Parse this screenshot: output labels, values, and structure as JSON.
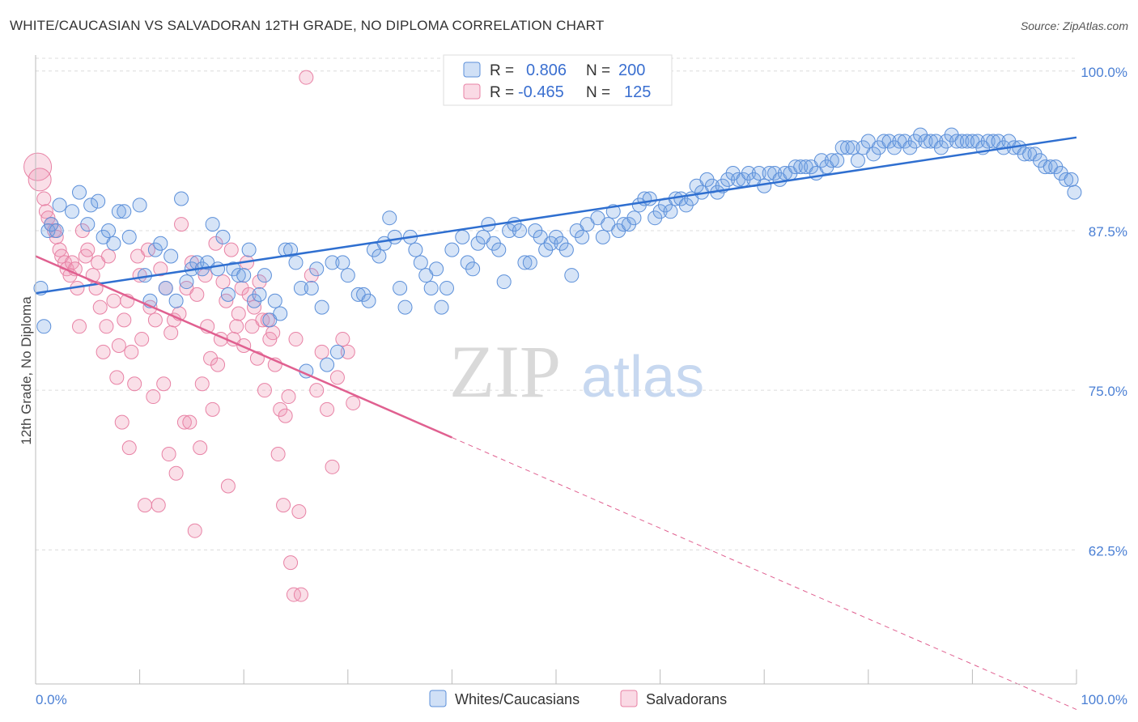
{
  "title": "WHITE/CAUCASIAN VS SALVADORAN 12TH GRADE, NO DIPLOMA CORRELATION CHART",
  "source": "Source: ZipAtlas.com",
  "colors": {
    "blue": "#5b8fd9",
    "blue_fill": "rgba(120,165,230,0.30)",
    "blue_line": "#2f6fd0",
    "pink": "#e882a5",
    "pink_fill": "rgba(240,150,180,0.30)",
    "pink_line": "#e06090"
  },
  "legend": {
    "rows": [
      {
        "r_label": "R =",
        "r_value": "0.806",
        "n_label": "N =",
        "n_value": "200"
      },
      {
        "r_label": "R =",
        "r_value": "-0.465",
        "n_label": "N =",
        "n_value": "125"
      }
    ]
  },
  "bottom_legend": [
    "Whites/Caucasians",
    "Salvadorans"
  ],
  "watermark": {
    "zip": "ZIP",
    "atlas": "atlas"
  },
  "chart_data": {
    "type": "scatter",
    "title": "WHITE/CAUCASIAN VS SALVADORAN 12TH GRADE, NO DIPLOMA CORRELATION CHART",
    "xlabel": "",
    "ylabel": "12th Grade, No Diploma",
    "xlim": [
      0,
      100
    ],
    "ylim": [
      52,
      101
    ],
    "x_tick_labels": [
      "0.0%",
      "100.0%"
    ],
    "y_ticks": [
      62.5,
      75.0,
      87.5,
      100.0
    ],
    "y_tick_labels": [
      "62.5%",
      "75.0%",
      "87.5%",
      "100.0%"
    ],
    "grid": true,
    "legend_position": "top-center",
    "series": [
      {
        "name": "Whites/Caucasians",
        "trend": {
          "x": [
            0,
            100
          ],
          "y": [
            82.6,
            94.8
          ]
        },
        "points": [
          [
            0.5,
            83
          ],
          [
            0.8,
            80
          ],
          [
            1.2,
            87.5
          ],
          [
            1.5,
            88
          ],
          [
            2,
            87.5
          ],
          [
            2.3,
            89.5
          ],
          [
            3.5,
            89
          ],
          [
            4.2,
            90.5
          ],
          [
            5,
            88
          ],
          [
            5.3,
            89.5
          ],
          [
            6,
            89.8
          ],
          [
            6.5,
            87
          ],
          [
            7,
            87.5
          ],
          [
            7.5,
            86.5
          ],
          [
            8,
            89
          ],
          [
            8.5,
            89
          ],
          [
            9,
            87
          ],
          [
            10,
            89.5
          ],
          [
            10.5,
            84
          ],
          [
            11,
            82
          ],
          [
            11.5,
            86
          ],
          [
            12,
            86.5
          ],
          [
            12.5,
            83
          ],
          [
            13,
            85.5
          ],
          [
            13.5,
            82
          ],
          [
            14,
            90
          ],
          [
            14.5,
            83.5
          ],
          [
            15,
            84.5
          ],
          [
            15.5,
            85
          ],
          [
            16,
            84.5
          ],
          [
            16.5,
            85
          ],
          [
            17,
            88
          ],
          [
            17.5,
            84.5
          ],
          [
            18,
            87
          ],
          [
            18.5,
            82.5
          ],
          [
            19,
            84.5
          ],
          [
            19.5,
            84
          ],
          [
            20,
            84
          ],
          [
            20.5,
            86
          ],
          [
            21,
            82
          ],
          [
            21.5,
            82.5
          ],
          [
            22,
            84
          ],
          [
            22.5,
            80.5
          ],
          [
            23,
            82
          ],
          [
            23.5,
            81
          ],
          [
            24,
            86
          ],
          [
            24.5,
            86
          ],
          [
            25,
            85
          ],
          [
            25.5,
            83
          ],
          [
            26,
            76.5
          ],
          [
            26.5,
            83
          ],
          [
            27,
            84.5
          ],
          [
            27.5,
            81.5
          ],
          [
            28,
            77
          ],
          [
            28.5,
            85
          ],
          [
            29,
            78
          ],
          [
            29.5,
            85
          ],
          [
            30,
            84
          ],
          [
            31,
            82.5
          ],
          [
            31.5,
            82.5
          ],
          [
            32,
            82
          ],
          [
            32.5,
            86
          ],
          [
            33,
            85.5
          ],
          [
            33.5,
            86.5
          ],
          [
            34,
            88.5
          ],
          [
            34.5,
            87
          ],
          [
            35,
            83
          ],
          [
            35.5,
            81.5
          ],
          [
            36,
            87
          ],
          [
            36.5,
            86
          ],
          [
            37,
            85
          ],
          [
            37.5,
            84
          ],
          [
            38,
            83
          ],
          [
            38.5,
            84.5
          ],
          [
            39,
            81.5
          ],
          [
            39.5,
            83
          ],
          [
            40,
            86
          ],
          [
            41,
            87
          ],
          [
            41.5,
            85
          ],
          [
            42,
            84.5
          ],
          [
            42.5,
            86.5
          ],
          [
            43,
            87
          ],
          [
            43.5,
            88
          ],
          [
            44,
            86.5
          ],
          [
            44.5,
            86
          ],
          [
            45,
            83.5
          ],
          [
            45.5,
            87.5
          ],
          [
            46,
            88
          ],
          [
            46.5,
            87.5
          ],
          [
            47,
            85
          ],
          [
            47.5,
            85
          ],
          [
            48,
            87.5
          ],
          [
            48.5,
            87
          ],
          [
            49,
            86
          ],
          [
            49.5,
            86.5
          ],
          [
            50,
            87
          ],
          [
            50.5,
            86.5
          ],
          [
            51,
            86
          ],
          [
            51.5,
            84
          ],
          [
            52,
            87.5
          ],
          [
            52.5,
            87
          ],
          [
            53,
            88
          ],
          [
            54,
            88.5
          ],
          [
            54.5,
            87
          ],
          [
            55,
            88
          ],
          [
            55.5,
            89
          ],
          [
            56,
            87.5
          ],
          [
            56.5,
            88
          ],
          [
            57,
            88
          ],
          [
            57.5,
            88.5
          ],
          [
            58,
            89.5
          ],
          [
            58.5,
            90
          ],
          [
            59,
            90
          ],
          [
            59.5,
            88.5
          ],
          [
            60,
            89
          ],
          [
            60.5,
            89.5
          ],
          [
            61,
            89
          ],
          [
            61.5,
            90
          ],
          [
            62,
            90
          ],
          [
            62.5,
            89.5
          ],
          [
            63,
            90
          ],
          [
            63.5,
            91
          ],
          [
            64,
            90.5
          ],
          [
            64.5,
            91.5
          ],
          [
            65,
            91
          ],
          [
            65.5,
            90.5
          ],
          [
            66,
            91
          ],
          [
            66.5,
            91.5
          ],
          [
            67,
            92
          ],
          [
            67.5,
            91.5
          ],
          [
            68,
            91.5
          ],
          [
            68.5,
            92
          ],
          [
            69,
            91.5
          ],
          [
            69.5,
            92
          ],
          [
            70,
            91
          ],
          [
            70.5,
            92
          ],
          [
            71,
            92
          ],
          [
            71.5,
            91.5
          ],
          [
            72,
            92
          ],
          [
            72.5,
            92
          ],
          [
            73,
            92.5
          ],
          [
            73.5,
            92.5
          ],
          [
            74,
            92.5
          ],
          [
            74.5,
            92.5
          ],
          [
            75,
            92
          ],
          [
            75.5,
            93
          ],
          [
            76,
            92.5
          ],
          [
            76.5,
            93
          ],
          [
            77,
            93
          ],
          [
            77.5,
            94
          ],
          [
            78,
            94
          ],
          [
            78.5,
            94
          ],
          [
            79,
            93
          ],
          [
            79.5,
            94
          ],
          [
            80,
            94.5
          ],
          [
            80.5,
            93.5
          ],
          [
            81,
            94
          ],
          [
            81.5,
            94.5
          ],
          [
            82,
            94.5
          ],
          [
            82.5,
            94
          ],
          [
            83,
            94.5
          ],
          [
            83.5,
            94.5
          ],
          [
            84,
            94
          ],
          [
            84.5,
            94.5
          ],
          [
            85,
            95
          ],
          [
            85.5,
            94.5
          ],
          [
            86,
            94.5
          ],
          [
            86.5,
            94.5
          ],
          [
            87,
            94
          ],
          [
            87.5,
            94.5
          ],
          [
            88,
            95
          ],
          [
            88.5,
            94.5
          ],
          [
            89,
            94.5
          ],
          [
            89.5,
            94.5
          ],
          [
            90,
            94.5
          ],
          [
            90.5,
            94.5
          ],
          [
            91,
            94
          ],
          [
            91.5,
            94.5
          ],
          [
            92,
            94.5
          ],
          [
            92.5,
            94.5
          ],
          [
            93,
            94
          ],
          [
            93.5,
            94.5
          ],
          [
            94,
            94
          ],
          [
            94.5,
            94
          ],
          [
            95,
            93.5
          ],
          [
            95.5,
            93.5
          ],
          [
            96,
            93.5
          ],
          [
            96.5,
            93
          ],
          [
            97,
            92.5
          ],
          [
            97.5,
            92.5
          ],
          [
            98,
            92.5
          ],
          [
            98.5,
            92
          ],
          [
            99,
            91.5
          ],
          [
            99.5,
            91.5
          ],
          [
            99.8,
            90.5
          ]
        ]
      },
      {
        "name": "Salvadorans",
        "trend": {
          "x": [
            0,
            40
          ],
          "y": [
            85.5,
            71.3
          ]
        },
        "trend_dashed": {
          "x": [
            40,
            100
          ],
          "y": [
            71.3,
            50
          ]
        },
        "points": [
          [
            0.2,
            92.5
          ],
          [
            0.4,
            91.5
          ],
          [
            0.8,
            90
          ],
          [
            1,
            89
          ],
          [
            1.2,
            88.5
          ],
          [
            1.5,
            88
          ],
          [
            1.8,
            87.5
          ],
          [
            2,
            87
          ],
          [
            2.3,
            86
          ],
          [
            2.5,
            85.5
          ],
          [
            2.8,
            85
          ],
          [
            3,
            84.5
          ],
          [
            3.3,
            84
          ],
          [
            3.5,
            85
          ],
          [
            3.8,
            84.5
          ],
          [
            4,
            83
          ],
          [
            4.2,
            80
          ],
          [
            4.5,
            87.5
          ],
          [
            4.8,
            85.5
          ],
          [
            5,
            86
          ],
          [
            5.5,
            84
          ],
          [
            5.8,
            83
          ],
          [
            6,
            85
          ],
          [
            6.2,
            81.5
          ],
          [
            6.5,
            78
          ],
          [
            6.8,
            80
          ],
          [
            7,
            85.5
          ],
          [
            7.5,
            82
          ],
          [
            7.8,
            76
          ],
          [
            8,
            78.5
          ],
          [
            8.3,
            72.5
          ],
          [
            8.5,
            80.5
          ],
          [
            8.8,
            82
          ],
          [
            9,
            70.5
          ],
          [
            9.2,
            78
          ],
          [
            9.5,
            75.5
          ],
          [
            9.8,
            85.5
          ],
          [
            10,
            84
          ],
          [
            10.2,
            79
          ],
          [
            10.5,
            66
          ],
          [
            10.8,
            86
          ],
          [
            11,
            81.5
          ],
          [
            11.3,
            74.5
          ],
          [
            11.5,
            80.5
          ],
          [
            11.8,
            66
          ],
          [
            12,
            84.5
          ],
          [
            12.3,
            75.5
          ],
          [
            12.5,
            83
          ],
          [
            12.8,
            70
          ],
          [
            13,
            79.5
          ],
          [
            13.3,
            80.5
          ],
          [
            13.5,
            68.5
          ],
          [
            13.8,
            81
          ],
          [
            14,
            88
          ],
          [
            14.3,
            72.5
          ],
          [
            14.5,
            83
          ],
          [
            14.8,
            72.5
          ],
          [
            15,
            85
          ],
          [
            15.3,
            64
          ],
          [
            15.5,
            82.5
          ],
          [
            15.8,
            70.5
          ],
          [
            16,
            75.5
          ],
          [
            16.3,
            84
          ],
          [
            16.5,
            80
          ],
          [
            16.8,
            77.5
          ],
          [
            17,
            73.5
          ],
          [
            17.3,
            86.5
          ],
          [
            17.5,
            77
          ],
          [
            17.8,
            79
          ],
          [
            18,
            83.5
          ],
          [
            18.3,
            82
          ],
          [
            18.5,
            67.5
          ],
          [
            18.8,
            86
          ],
          [
            19,
            79
          ],
          [
            19.3,
            80
          ],
          [
            19.5,
            81
          ],
          [
            19.8,
            83
          ],
          [
            20,
            78.5
          ],
          [
            20.3,
            85
          ],
          [
            20.5,
            82.5
          ],
          [
            20.8,
            80
          ],
          [
            21,
            81.5
          ],
          [
            21.3,
            77.5
          ],
          [
            21.5,
            83.5
          ],
          [
            21.8,
            80.5
          ],
          [
            22,
            75
          ],
          [
            22.3,
            80.5
          ],
          [
            22.5,
            79
          ],
          [
            22.8,
            79.5
          ],
          [
            23,
            77
          ],
          [
            23.3,
            70
          ],
          [
            23.5,
            73.5
          ],
          [
            23.8,
            66
          ],
          [
            24,
            73
          ],
          [
            24.3,
            74.5
          ],
          [
            24.5,
            61.5
          ],
          [
            24.8,
            59
          ],
          [
            25,
            79
          ],
          [
            25.3,
            65.5
          ],
          [
            25.5,
            59
          ],
          [
            26,
            99.5
          ],
          [
            26.5,
            84
          ],
          [
            27,
            75
          ],
          [
            27.5,
            78
          ],
          [
            28,
            73.5
          ],
          [
            28.5,
            69
          ],
          [
            29,
            76
          ],
          [
            29.5,
            79
          ],
          [
            30,
            78
          ],
          [
            30.5,
            74
          ]
        ]
      }
    ]
  }
}
